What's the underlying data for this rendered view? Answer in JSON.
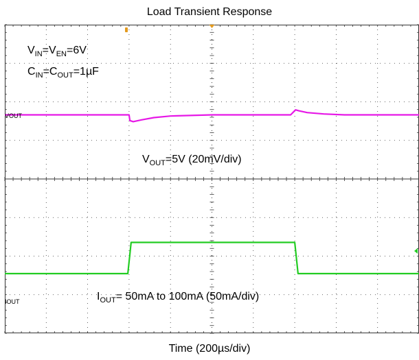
{
  "chart_data": {
    "type": "line",
    "title": "Load Transient Response",
    "xlabel": "Time (200µs/div)",
    "x_units": "div",
    "xlim": [
      0,
      10
    ],
    "grid": true,
    "grid_divisions": {
      "x": 10,
      "y": 8
    },
    "annotations": {
      "conditions_line1": {
        "V1": "V",
        "S1": "IN",
        "E1": "=",
        "V2": "V",
        "S2": "EN",
        "E2": "=6V"
      },
      "conditions_line2": {
        "V1": "C",
        "S1": "IN",
        "E1": "=",
        "V2": "C",
        "S2": "OUT",
        "E2": "=1µF"
      },
      "vout": {
        "V": "V",
        "S": "OUT",
        "rest": "=5V (20mV/div)"
      },
      "iout": {
        "V": "I",
        "S": "OUT",
        "rest": "= 50mA to 100mA (50mA/div)"
      }
    },
    "series": [
      {
        "channel_label": "VOUT",
        "color": "#e617e6",
        "x": [
          0,
          1.0,
          3.0,
          3.02,
          3.1,
          3.3,
          3.6,
          4.0,
          5.0,
          6.0,
          6.9,
          7.02,
          7.1,
          7.3,
          7.7,
          8.2,
          10
        ],
        "y": [
          0,
          0,
          0,
          -0.25,
          -0.3,
          -0.22,
          -0.12,
          -0.05,
          0,
          0,
          0,
          0.22,
          0.18,
          0.1,
          0.04,
          0,
          0
        ]
      },
      {
        "channel_label": "IOUT",
        "color": "#22cc22",
        "x": [
          0,
          2.97,
          3.05,
          7.0,
          7.08,
          10
        ],
        "y": [
          0,
          0,
          1,
          1,
          0,
          0
        ]
      }
    ]
  },
  "colors": {
    "grid": "#333333",
    "trigger_marker": "#e39a1e",
    "ch2_marker": "#22cc22"
  }
}
